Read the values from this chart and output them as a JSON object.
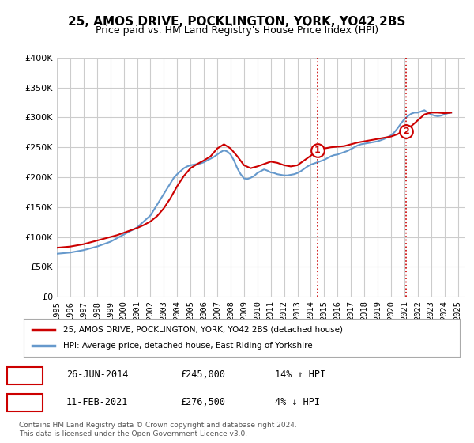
{
  "title": "25, AMOS DRIVE, POCKLINGTON, YORK, YO42 2BS",
  "subtitle": "Price paid vs. HM Land Registry's House Price Index (HPI)",
  "legend_line1": "25, AMOS DRIVE, POCKLINGTON, YORK, YO42 2BS (detached house)",
  "legend_line2": "HPI: Average price, detached house, East Riding of Yorkshire",
  "footnote": "Contains HM Land Registry data © Crown copyright and database right 2024.\nThis data is licensed under the Open Government Licence v3.0.",
  "sale1_label": "1",
  "sale1_date": "26-JUN-2014",
  "sale1_price": "£245,000",
  "sale1_hpi": "14% ↑ HPI",
  "sale1_x": 2014.49,
  "sale1_y": 245000,
  "sale2_label": "2",
  "sale2_date": "11-FEB-2021",
  "sale2_price": "£276,500",
  "sale2_hpi": "4% ↓ HPI",
  "sale2_x": 2021.12,
  "sale2_y": 276500,
  "property_color": "#cc0000",
  "hpi_color": "#6699cc",
  "vline_color": "#cc0000",
  "background_color": "#ffffff",
  "grid_color": "#cccccc",
  "ylim": [
    0,
    400000
  ],
  "xlim": [
    1995,
    2025.5
  ],
  "yticks": [
    0,
    50000,
    100000,
    150000,
    200000,
    250000,
    300000,
    350000,
    400000
  ],
  "xticks": [
    1995,
    1996,
    1997,
    1998,
    1999,
    2000,
    2001,
    2002,
    2003,
    2004,
    2005,
    2006,
    2007,
    2008,
    2009,
    2010,
    2011,
    2012,
    2013,
    2014,
    2015,
    2016,
    2017,
    2018,
    2019,
    2020,
    2021,
    2022,
    2023,
    2024,
    2025
  ],
  "hpi_x": [
    1995.0,
    1995.25,
    1995.5,
    1995.75,
    1996.0,
    1996.25,
    1996.5,
    1996.75,
    1997.0,
    1997.25,
    1997.5,
    1997.75,
    1998.0,
    1998.25,
    1998.5,
    1998.75,
    1999.0,
    1999.25,
    1999.5,
    1999.75,
    2000.0,
    2000.25,
    2000.5,
    2000.75,
    2001.0,
    2001.25,
    2001.5,
    2001.75,
    2002.0,
    2002.25,
    2002.5,
    2002.75,
    2003.0,
    2003.25,
    2003.5,
    2003.75,
    2004.0,
    2004.25,
    2004.5,
    2004.75,
    2005.0,
    2005.25,
    2005.5,
    2005.75,
    2006.0,
    2006.25,
    2006.5,
    2006.75,
    2007.0,
    2007.25,
    2007.5,
    2007.75,
    2008.0,
    2008.25,
    2008.5,
    2008.75,
    2009.0,
    2009.25,
    2009.5,
    2009.75,
    2010.0,
    2010.25,
    2010.5,
    2010.75,
    2011.0,
    2011.25,
    2011.5,
    2011.75,
    2012.0,
    2012.25,
    2012.5,
    2012.75,
    2013.0,
    2013.25,
    2013.5,
    2013.75,
    2014.0,
    2014.25,
    2014.5,
    2014.75,
    2015.0,
    2015.25,
    2015.5,
    2015.75,
    2016.0,
    2016.25,
    2016.5,
    2016.75,
    2017.0,
    2017.25,
    2017.5,
    2017.75,
    2018.0,
    2018.25,
    2018.5,
    2018.75,
    2019.0,
    2019.25,
    2019.5,
    2019.75,
    2020.0,
    2020.25,
    2020.5,
    2020.75,
    2021.0,
    2021.25,
    2021.5,
    2021.75,
    2022.0,
    2022.25,
    2022.5,
    2022.75,
    2023.0,
    2023.25,
    2023.5,
    2023.75,
    2024.0,
    2024.25,
    2024.5
  ],
  "hpi_y": [
    72000,
    72500,
    73000,
    73500,
    74000,
    75000,
    76000,
    77000,
    78000,
    79500,
    81000,
    82500,
    84000,
    86000,
    88000,
    90000,
    92000,
    95000,
    98000,
    101000,
    104000,
    107000,
    110000,
    113000,
    116000,
    121000,
    126000,
    131000,
    136000,
    145000,
    154000,
    163000,
    172000,
    181000,
    190000,
    199000,
    205000,
    210000,
    215000,
    218000,
    220000,
    221000,
    222000,
    223000,
    225000,
    228000,
    231000,
    234000,
    238000,
    242000,
    245000,
    243000,
    238000,
    228000,
    215000,
    205000,
    198000,
    197000,
    199000,
    202000,
    207000,
    210000,
    213000,
    211000,
    208000,
    207000,
    205000,
    204000,
    203000,
    203000,
    204000,
    205000,
    207000,
    210000,
    214000,
    218000,
    221000,
    223000,
    225000,
    227000,
    229000,
    232000,
    235000,
    237000,
    238000,
    240000,
    242000,
    244000,
    247000,
    250000,
    253000,
    255000,
    256000,
    257000,
    258000,
    259000,
    260000,
    262000,
    264000,
    267000,
    270000,
    275000,
    282000,
    290000,
    297000,
    302000,
    306000,
    308000,
    308000,
    310000,
    312000,
    308000,
    305000,
    303000,
    302000,
    303000,
    305000,
    307000,
    308000
  ],
  "property_x": [
    1995.0,
    1995.5,
    1996.0,
    1996.5,
    1997.0,
    1997.5,
    1998.0,
    1998.5,
    1999.0,
    1999.5,
    2000.0,
    2000.5,
    2001.0,
    2001.5,
    2002.0,
    2002.5,
    2003.0,
    2003.5,
    2004.0,
    2004.5,
    2005.0,
    2005.5,
    2006.0,
    2006.5,
    2007.0,
    2007.5,
    2008.0,
    2008.5,
    2009.0,
    2009.5,
    2010.0,
    2010.5,
    2011.0,
    2011.5,
    2012.0,
    2012.5,
    2013.0,
    2013.5,
    2014.0,
    2014.5,
    2015.0,
    2015.5,
    2016.0,
    2016.5,
    2017.0,
    2017.5,
    2018.0,
    2018.5,
    2019.0,
    2019.5,
    2020.0,
    2020.5,
    2021.0,
    2021.5,
    2022.0,
    2022.5,
    2023.0,
    2023.5,
    2024.0,
    2024.5
  ],
  "property_y": [
    82000,
    83000,
    84000,
    86000,
    88000,
    91000,
    94000,
    97000,
    100000,
    103000,
    107000,
    111000,
    115000,
    120000,
    126000,
    135000,
    148000,
    165000,
    185000,
    202000,
    215000,
    222000,
    228000,
    235000,
    248000,
    255000,
    248000,
    235000,
    220000,
    215000,
    218000,
    222000,
    226000,
    224000,
    220000,
    218000,
    220000,
    228000,
    236000,
    245000,
    248000,
    250000,
    251000,
    252000,
    255000,
    258000,
    260000,
    262000,
    264000,
    266000,
    268000,
    272000,
    279000,
    285000,
    295000,
    305000,
    308000,
    308000,
    307000,
    308000
  ]
}
